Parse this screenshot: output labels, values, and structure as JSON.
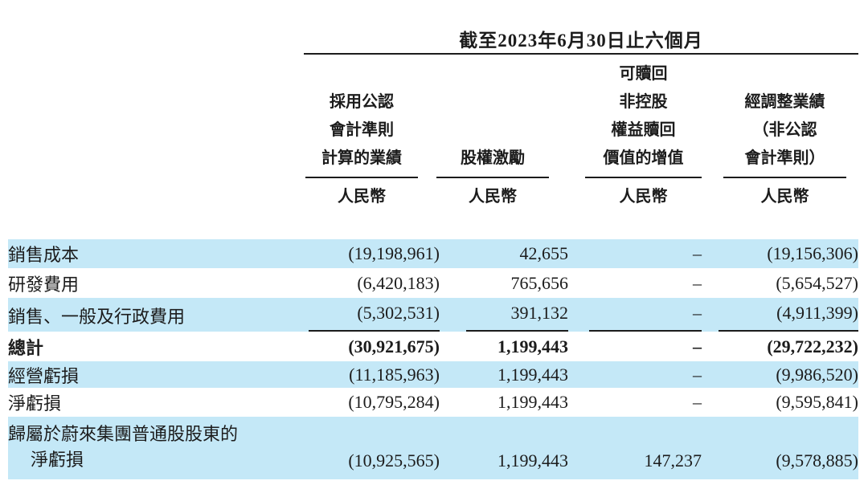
{
  "meta": {
    "highlight_color": "#c4e8f7",
    "text_color": "#1c1c1c"
  },
  "table": {
    "period_title": "截至2023年6月30日止六個月",
    "columns": [
      {
        "name": "gaap-results",
        "header_lines": [
          "採用公認",
          "會計準則",
          "計算的業績"
        ],
        "unit": "人民幣"
      },
      {
        "name": "share-based-compensation",
        "header_lines": [
          "股權激勵"
        ],
        "unit": "人民幣"
      },
      {
        "name": "redeemable-nci-accretion",
        "header_lines": [
          "可贖回",
          "非控股",
          "權益贖回",
          "價值的增值"
        ],
        "unit": "人民幣"
      },
      {
        "name": "adjusted-non-gaap-results",
        "header_lines": [
          "經調整業績",
          "（非公認",
          "會計準則）"
        ],
        "unit": "人民幣"
      }
    ],
    "rows": [
      {
        "label": "銷售成本",
        "values": [
          "(19,198,961)",
          "42,655",
          "–",
          "(19,156,306)"
        ],
        "highlight": true,
        "bold": false,
        "underline": false
      },
      {
        "label": "研發費用",
        "values": [
          "(6,420,183)",
          "765,656",
          "–",
          "(5,654,527)"
        ],
        "highlight": false,
        "bold": false,
        "underline": false
      },
      {
        "label": "銷售、一般及行政費用",
        "values": [
          "(5,302,531)",
          "391,132",
          "–",
          "(4,911,399)"
        ],
        "highlight": true,
        "bold": false,
        "underline": true
      },
      {
        "label": "總計",
        "values": [
          "(30,921,675)",
          "1,199,443",
          "–",
          "(29,722,232)"
        ],
        "highlight": false,
        "bold": true,
        "underline": false
      },
      {
        "label": "經營虧損",
        "values": [
          "(11,185,963)",
          "1,199,443",
          "–",
          "(9,986,520)"
        ],
        "highlight": true,
        "bold": false,
        "underline": false
      },
      {
        "label": "淨虧損",
        "values": [
          "(10,795,284)",
          "1,199,443",
          "–",
          "(9,595,841)"
        ],
        "highlight": false,
        "bold": false,
        "underline": false
      },
      {
        "label_lines": [
          "歸屬於蔚來集團普通股股東的",
          "淨虧損"
        ],
        "values": [
          "(10,925,565)",
          "1,199,443",
          "147,237",
          "(9,578,885)"
        ],
        "highlight": true,
        "bold": false,
        "underline": false
      }
    ]
  }
}
